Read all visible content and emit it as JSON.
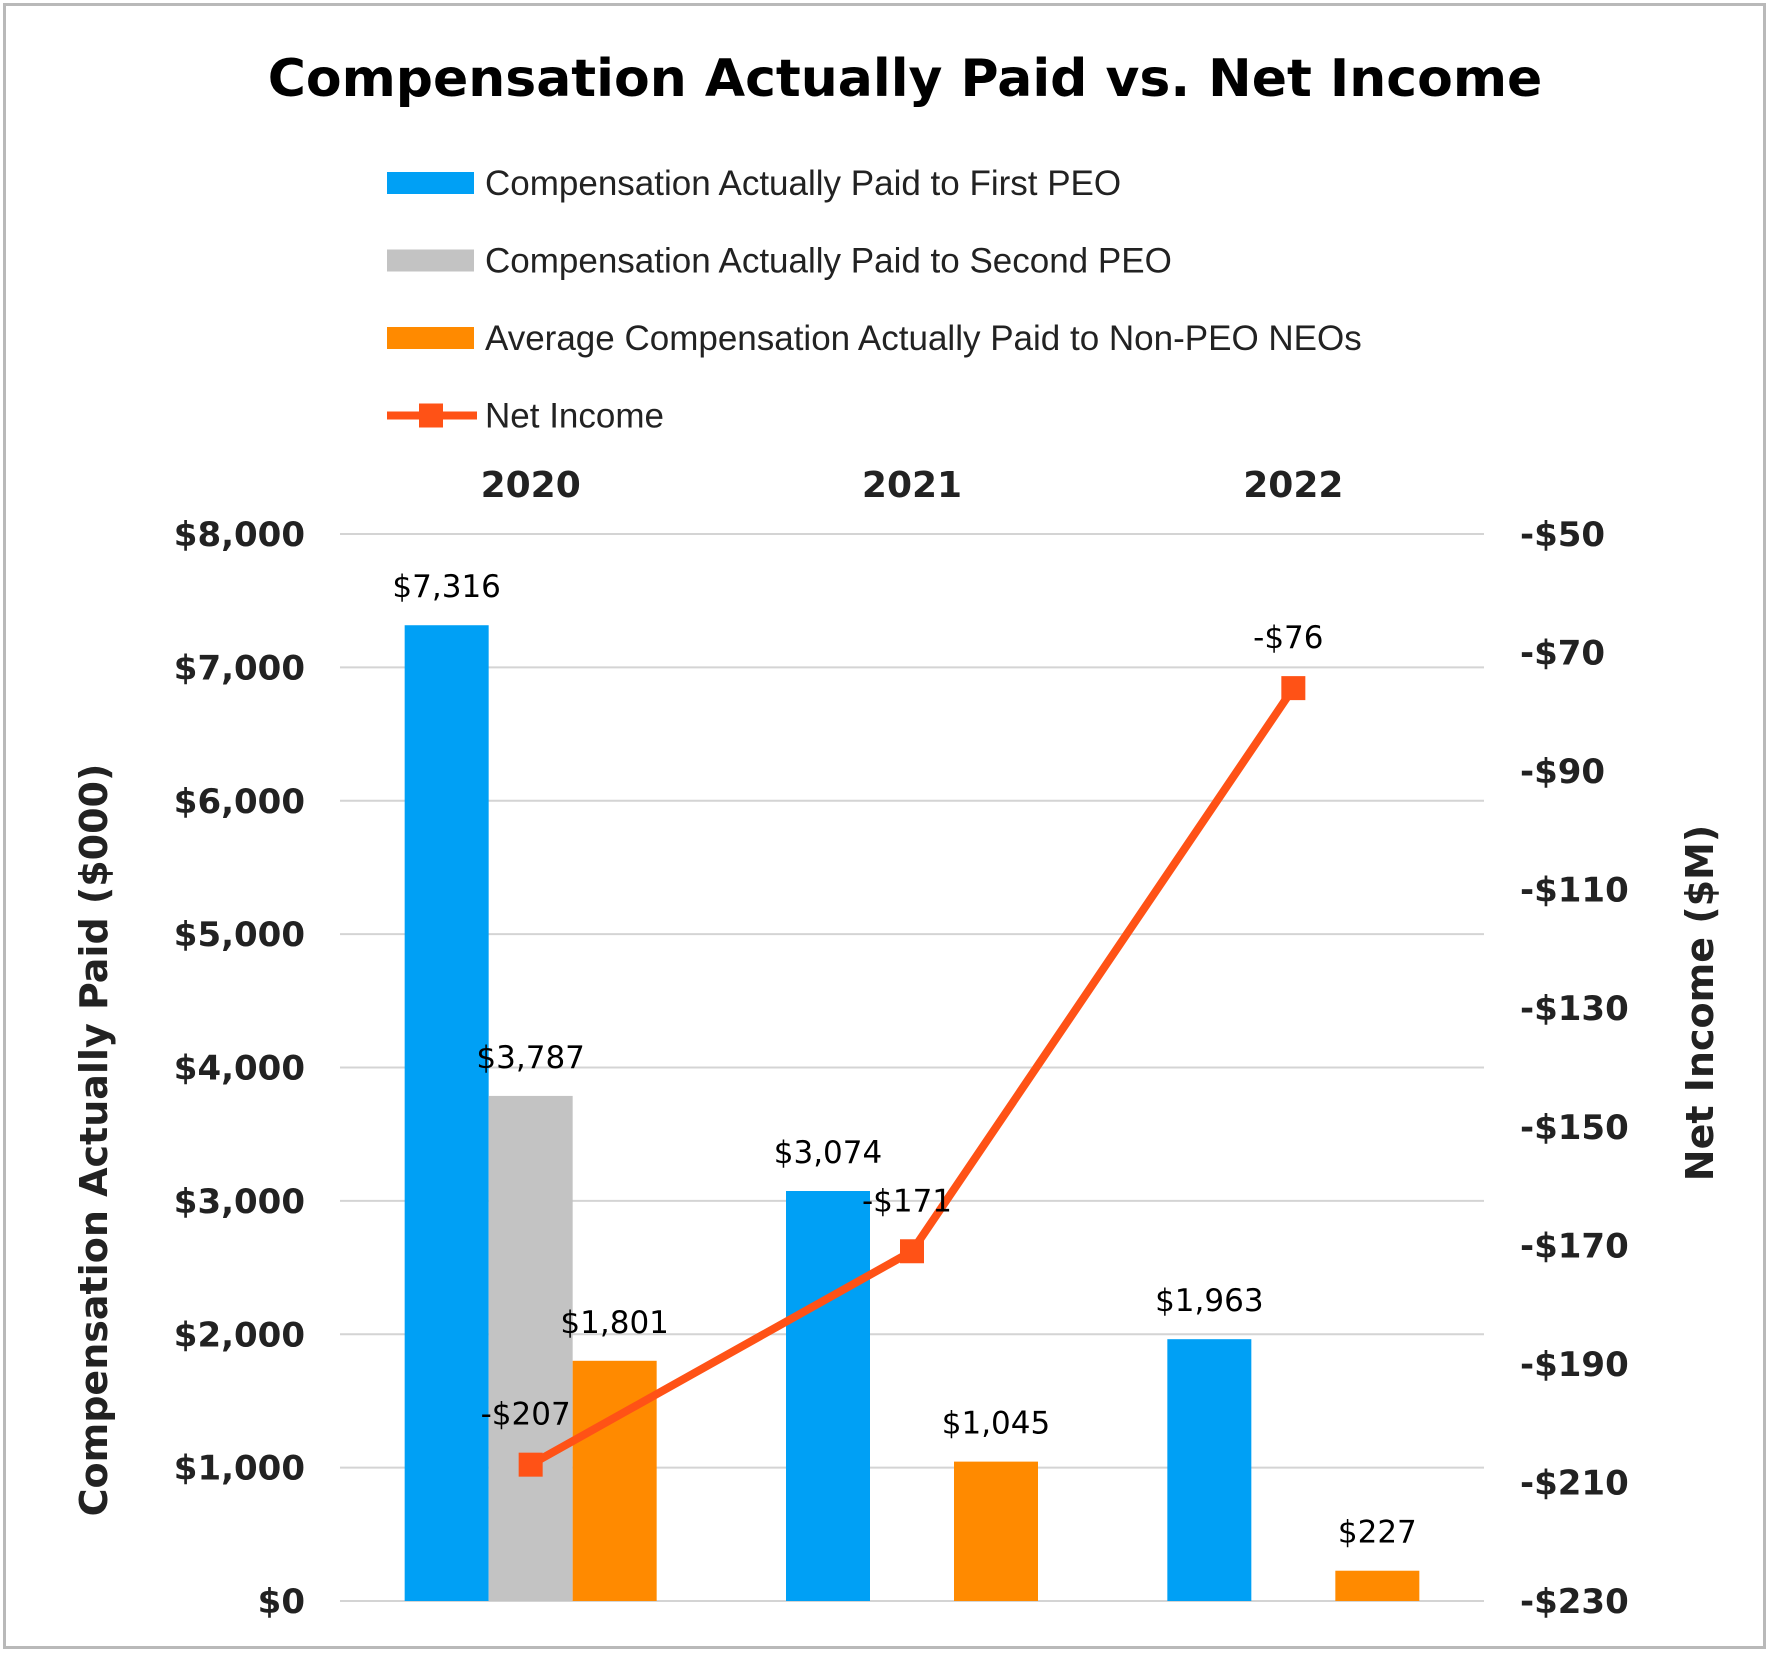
{
  "chart_data": {
    "type": "bar",
    "title": "Compensation Actually Paid vs. Net Income",
    "categories": [
      "2020",
      "2021",
      "2022"
    ],
    "ylabel": "Compensation Actually Paid ($000)",
    "y2label": "Net Income ($M)",
    "ylim": [
      0,
      8000
    ],
    "y2lim": [
      -230,
      -50
    ],
    "yticks": [
      "$0",
      "$1,000",
      "$2,000",
      "$3,000",
      "$4,000",
      "$5,000",
      "$6,000",
      "$7,000",
      "$8,000"
    ],
    "y2ticks": [
      "-$230",
      "-$210",
      "-$190",
      "-$170",
      "-$150",
      "-$130",
      "-$110",
      "-$90",
      "-$70",
      "-$50"
    ],
    "grid": true,
    "legend_position": "top",
    "series": [
      {
        "name": "Compensation Actually Paid to First PEO",
        "kind": "bar",
        "color": "#00a0f5",
        "values": [
          7316,
          3074,
          1963
        ],
        "labels": [
          "$7,316",
          "$3,074",
          "$1,963"
        ]
      },
      {
        "name": "Compensation Actually Paid to Second PEO",
        "kind": "bar",
        "color": "#c3c3c3",
        "values": [
          3787,
          null,
          null
        ],
        "labels": [
          "$3,787",
          "",
          ""
        ]
      },
      {
        "name": "Average Compensation Actually Paid to Non-PEO NEOs",
        "kind": "bar",
        "color": "#ff8a00",
        "values": [
          1801,
          1045,
          227
        ],
        "labels": [
          "$1,801",
          "$1,045",
          "$227"
        ]
      },
      {
        "name": "Net Income",
        "kind": "line",
        "axis": "secondary",
        "color": "#ff5216",
        "values": [
          -207,
          -171,
          -76
        ],
        "labels": [
          "-$207",
          "-$171",
          "-$76"
        ]
      }
    ]
  }
}
